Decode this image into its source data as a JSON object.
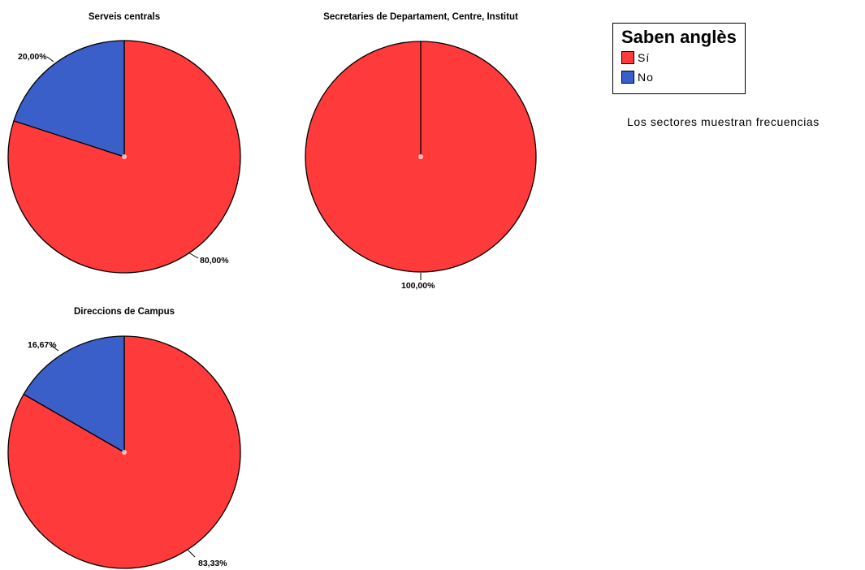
{
  "colors": {
    "yes": "#ff3a3a",
    "no": "#3b5fc8",
    "outline": "#000000"
  },
  "chart_data": [
    {
      "type": "pie",
      "title": "Serveis centrals",
      "slices": [
        {
          "category": "Sí",
          "value": 80.0,
          "label": "80,00%"
        },
        {
          "category": "No",
          "value": 20.0,
          "label": "20,00%"
        }
      ]
    },
    {
      "type": "pie",
      "title": "Secretaries de Departament, Centre, Institut",
      "slices": [
        {
          "category": "Sí",
          "value": 100.0,
          "label": "100,00%"
        }
      ]
    },
    {
      "type": "pie",
      "title": "Direccions de Campus",
      "slices": [
        {
          "category": "Sí",
          "value": 83.33,
          "label": "83,33%"
        },
        {
          "category": "No",
          "value": 16.67,
          "label": "16,67%"
        }
      ]
    }
  ],
  "legend": {
    "title": "Saben anglès",
    "items": [
      {
        "label": "Sí",
        "color": "#ff3a3a"
      },
      {
        "label": "No",
        "color": "#3b5fc8"
      }
    ]
  },
  "footnote": "Los sectores muestran frecuencias"
}
